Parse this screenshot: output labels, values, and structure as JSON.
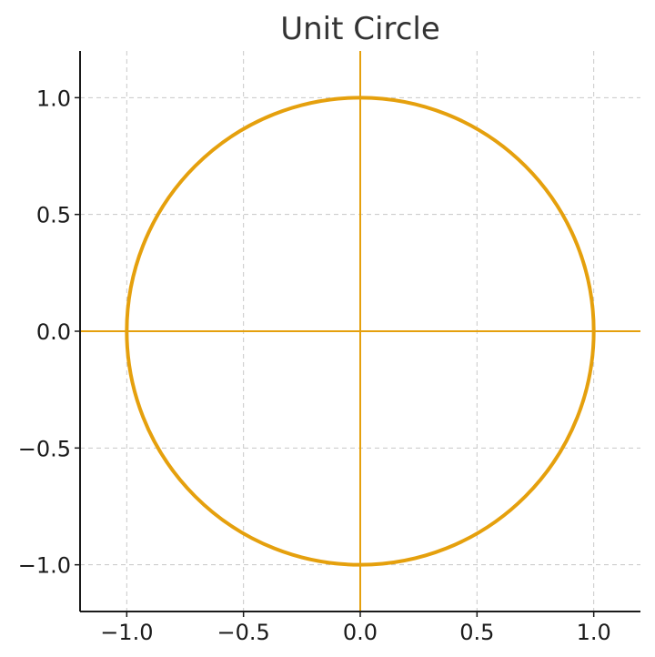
{
  "chart_data": {
    "type": "line",
    "title": "Unit Circle",
    "xlabel": "",
    "ylabel": "",
    "xlim": [
      -1.2,
      1.2
    ],
    "ylim": [
      -1.2,
      1.2
    ],
    "grid": true,
    "xticks": [
      -1.0,
      -0.5,
      0.0,
      0.5,
      1.0
    ],
    "yticks": [
      -1.0,
      -0.5,
      0.0,
      0.5,
      1.0
    ],
    "xtick_labels": [
      "−1.0",
      "−0.5",
      "0.0",
      "0.5",
      "1.0"
    ],
    "ytick_labels": [
      "−1.0",
      "−0.5",
      "0.0",
      "0.5",
      "1.0"
    ],
    "circle": {
      "center": [
        0,
        0
      ],
      "radius": 1
    },
    "reference_lines": {
      "horizontal_y": 0,
      "vertical_x": 0
    },
    "colors": {
      "curve": "#e5a00d",
      "axes_lines": "#e5a00d",
      "grid": "#c8c8c8"
    }
  }
}
